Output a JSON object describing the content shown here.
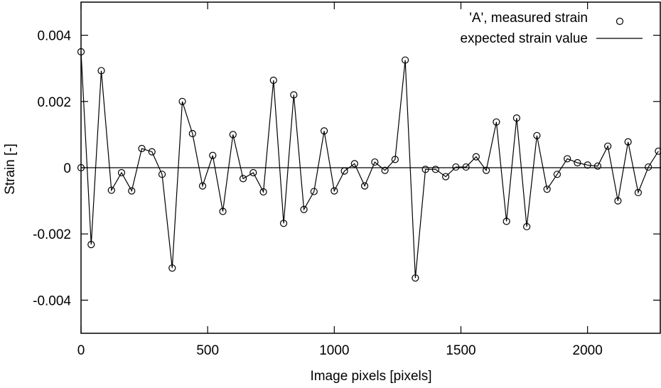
{
  "chart_data": {
    "type": "line",
    "title": "",
    "xlabel": "Image pixels [pixels]",
    "ylabel": "Strain [-]",
    "xlim": [
      0,
      2290
    ],
    "ylim": [
      -0.005,
      0.005
    ],
    "x_ticks": [
      0,
      500,
      1000,
      1500,
      2000
    ],
    "x_tick_labels": [
      "0",
      "500",
      "1000",
      "1500",
      "2000"
    ],
    "y_ticks": [
      -0.004,
      -0.002,
      0,
      0.002,
      0.004
    ],
    "y_tick_labels": [
      "-0.004",
      "-0.002",
      "0",
      "0.002",
      "0.004"
    ],
    "grid": false,
    "legend_position": "top-right",
    "series": [
      {
        "name": "'A', measured strain",
        "style": "line-with-open-circles",
        "color": "#000000",
        "x": [
          0,
          40,
          80,
          120,
          160,
          200,
          240,
          280,
          320,
          360,
          400,
          440,
          480,
          520,
          560,
          600,
          640,
          680,
          720,
          760,
          800,
          840,
          880,
          920,
          960,
          1000,
          1040,
          1080,
          1120,
          1160,
          1200,
          1240,
          1280,
          1320,
          1360,
          1400,
          1440,
          1480,
          1520,
          1560,
          1600,
          1640,
          1680,
          1720,
          1760,
          1800,
          1840,
          1880,
          1920,
          1960,
          2000,
          2040,
          2080,
          2120,
          2160,
          2200,
          2240,
          2280
        ],
        "y": [
          0.0035,
          -0.00232,
          0.00293,
          -0.00068,
          -0.00015,
          -0.0007,
          0.00058,
          0.00048,
          -0.0002,
          -0.00303,
          0.002,
          0.00103,
          -0.00055,
          0.00037,
          -0.00132,
          0.001,
          -0.00033,
          -0.00015,
          -0.00073,
          0.00264,
          -0.00168,
          0.0022,
          -0.00126,
          -0.00072,
          0.00111,
          -0.0007,
          -0.0001,
          0.00012,
          -0.00055,
          0.00017,
          -8e-05,
          0.00025,
          0.00325,
          -0.00333,
          -5e-05,
          -5e-05,
          -0.00027,
          2e-05,
          2e-05,
          0.00033,
          -8e-05,
          0.00138,
          -0.00162,
          0.0015,
          -0.00178,
          0.00097,
          -0.00065,
          -0.0002,
          0.00027,
          0.00015,
          8e-05,
          5e-05,
          0.00065,
          -0.001,
          0.00078,
          -0.00075,
          2e-05,
          0.0005
        ]
      },
      {
        "name": "expected strain value",
        "style": "line",
        "color": "#000000",
        "x": [
          0,
          2290
        ],
        "y": [
          0,
          0
        ]
      }
    ],
    "extra_points": [
      {
        "x": 0,
        "y": 0
      }
    ]
  }
}
